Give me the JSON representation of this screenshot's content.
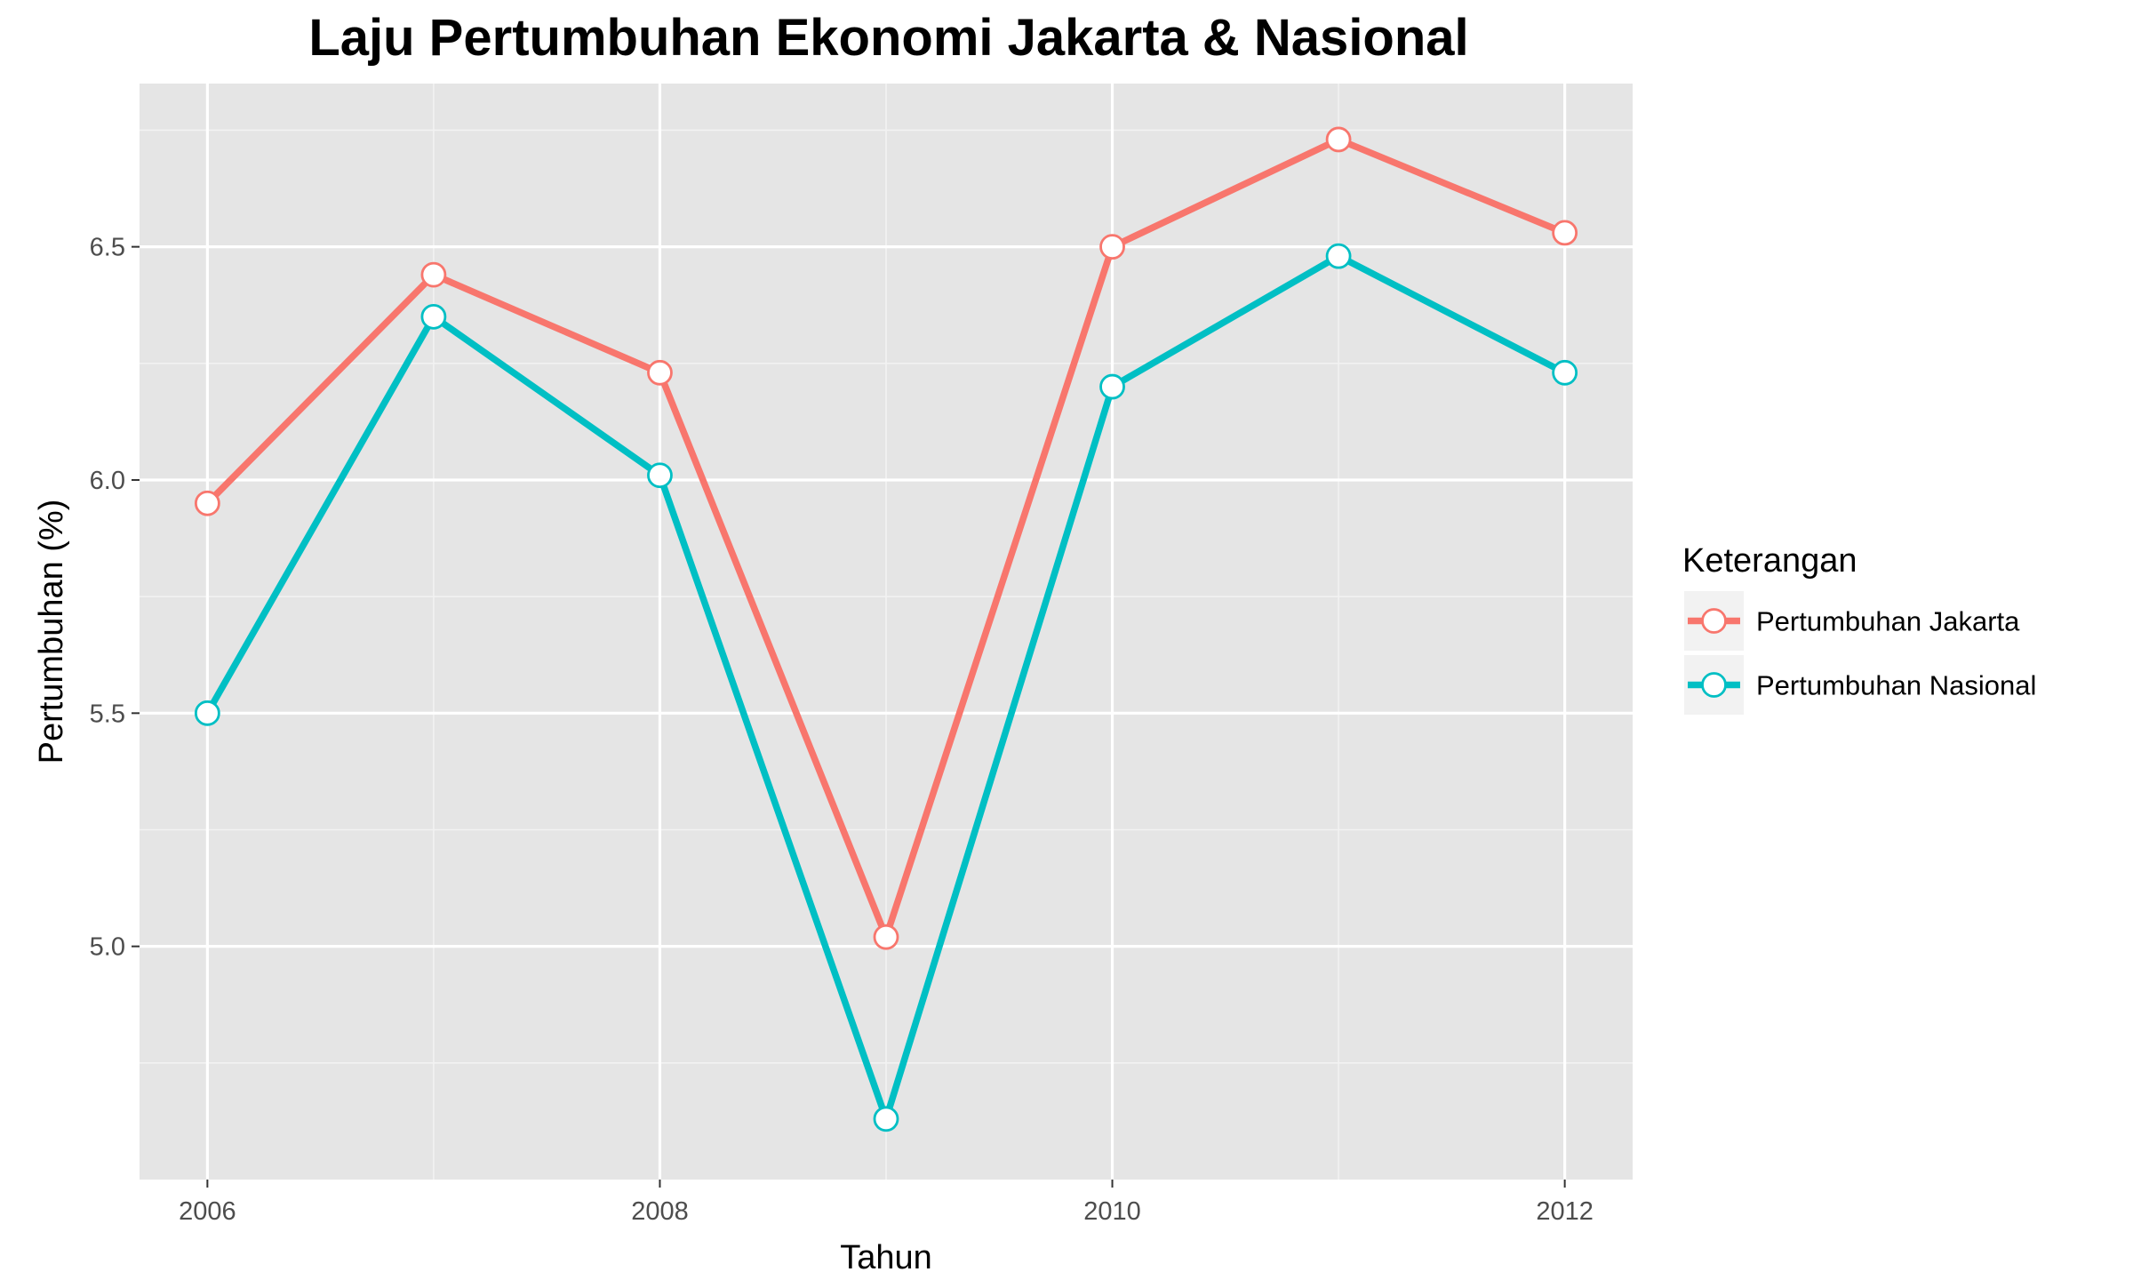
{
  "chart_data": {
    "type": "line",
    "title": "Laju Pertumbuhan Ekonomi Jakarta & Nasional",
    "xlabel": "Tahun",
    "ylabel": "Pertumbuhan (%)",
    "x": [
      2006,
      2007,
      2008,
      2009,
      2010,
      2011,
      2012
    ],
    "x_ticks": [
      "2006",
      "2008",
      "2010",
      "2012"
    ],
    "y_ticks": [
      "5.0",
      "5.5",
      "6.0",
      "6.5"
    ],
    "xlim": [
      2005.7,
      2012.3
    ],
    "ylim": [
      4.5,
      6.85
    ],
    "grid": true,
    "legend_title": "Keterangan",
    "legend_position": "right",
    "series": [
      {
        "name": "Pertumbuhan Jakarta",
        "color": "#F8766D",
        "values": [
          5.95,
          6.44,
          6.23,
          5.02,
          6.5,
          6.73,
          6.53
        ]
      },
      {
        "name": "Pertumbuhan Nasional",
        "color": "#00BFC4",
        "values": [
          5.5,
          6.35,
          6.01,
          4.63,
          6.2,
          6.48,
          6.23
        ]
      }
    ]
  }
}
